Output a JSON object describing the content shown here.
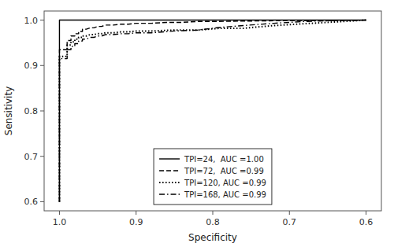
{
  "chart_data": {
    "type": "line",
    "xlabel": "Specificity",
    "ylabel": "Sensitivity",
    "xlim": [
      1.02,
      0.58
    ],
    "ylim": [
      0.58,
      1.02
    ],
    "xticks": [
      {
        "value": 1.0,
        "label": "1.0"
      },
      0.9,
      0.8,
      0.7,
      0.6
    ],
    "yticks": [
      0.6,
      0.7,
      0.8,
      0.9,
      {
        "value": 1.0,
        "label": "1.0"
      }
    ],
    "grid": false,
    "legend": "lower center",
    "series": [
      {
        "name": "TPI=24,  AUC =1.00",
        "color": "#000000",
        "line_style": "solid",
        "x": [
          1.0,
          1.0,
          1.0,
          1.0,
          1.0,
          0.99,
          0.99,
          0.99,
          0.99,
          0.99,
          0.99,
          0.99,
          0.99,
          0.99,
          0.99,
          0.99,
          0.99,
          0.99,
          0.99,
          0.99,
          0.99,
          0.99,
          0.99,
          0.99,
          0.99,
          0.6
        ],
        "values": [
          0.6,
          0.85,
          0.9,
          0.95,
          1.0,
          1.0,
          1.0,
          1.0,
          1.0,
          1.0,
          1.0,
          1.0,
          1.0,
          1.0,
          1.0,
          1.0,
          1.0,
          1.0,
          1.0,
          1.0,
          1.0,
          1.0,
          1.0,
          1.0,
          1.0,
          1.0
        ]
      },
      {
        "name": "TPI=72,  AUC =0.99",
        "color": "#000000",
        "line_style": "dashed",
        "x": [
          1.0,
          1.0,
          1.0,
          0.99,
          0.99,
          0.985,
          0.985,
          0.98,
          0.98,
          0.975,
          0.975,
          0.97,
          0.97,
          0.965,
          0.96,
          0.955,
          0.95,
          0.945,
          0.94,
          0.93,
          0.92,
          0.91,
          0.9,
          0.88,
          0.86,
          0.84,
          0.82,
          0.8,
          0.75,
          0.7,
          0.65,
          0.6
        ],
        "values": [
          0.6,
          0.9,
          0.935,
          0.935,
          0.955,
          0.955,
          0.965,
          0.965,
          0.97,
          0.97,
          0.975,
          0.975,
          0.98,
          0.98,
          0.983,
          0.983,
          0.986,
          0.986,
          0.989,
          0.989,
          0.991,
          0.991,
          0.993,
          0.993,
          0.995,
          0.995,
          0.997,
          0.997,
          0.998,
          0.999,
          0.999,
          1.0
        ]
      },
      {
        "name": "TPI=120, AUC =0.99",
        "color": "#000000",
        "line_style": "dotted",
        "x": [
          1.0,
          1.0,
          1.0,
          0.99,
          0.99,
          0.985,
          0.985,
          0.98,
          0.98,
          0.975,
          0.975,
          0.97,
          0.97,
          0.965,
          0.96,
          0.955,
          0.95,
          0.945,
          0.94,
          0.93,
          0.92,
          0.91,
          0.9,
          0.88,
          0.85,
          0.82,
          0.79,
          0.76,
          0.72,
          0.68,
          0.64,
          0.6
        ],
        "values": [
          0.6,
          0.88,
          0.92,
          0.92,
          0.945,
          0.945,
          0.952,
          0.952,
          0.958,
          0.958,
          0.962,
          0.962,
          0.965,
          0.965,
          0.968,
          0.968,
          0.97,
          0.97,
          0.972,
          0.972,
          0.974,
          0.974,
          0.976,
          0.976,
          0.978,
          0.978,
          0.982,
          0.982,
          0.988,
          0.992,
          0.996,
          1.0
        ]
      },
      {
        "name": "TPI=168, AUC =0.99",
        "color": "#000000",
        "line_style": "dashdot",
        "x": [
          1.0,
          1.0,
          1.0,
          0.99,
          0.99,
          0.985,
          0.985,
          0.98,
          0.98,
          0.975,
          0.975,
          0.97,
          0.97,
          0.965,
          0.96,
          0.955,
          0.95,
          0.945,
          0.94,
          0.93,
          0.92,
          0.91,
          0.9,
          0.88,
          0.85,
          0.82,
          0.79,
          0.76,
          0.72,
          0.68,
          0.64,
          0.6
        ],
        "values": [
          0.6,
          0.87,
          0.915,
          0.915,
          0.935,
          0.935,
          0.942,
          0.942,
          0.948,
          0.948,
          0.954,
          0.954,
          0.958,
          0.958,
          0.962,
          0.962,
          0.965,
          0.965,
          0.968,
          0.968,
          0.97,
          0.97,
          0.972,
          0.972,
          0.976,
          0.978,
          0.984,
          0.988,
          0.993,
          0.997,
          0.999,
          1.0
        ]
      }
    ]
  }
}
